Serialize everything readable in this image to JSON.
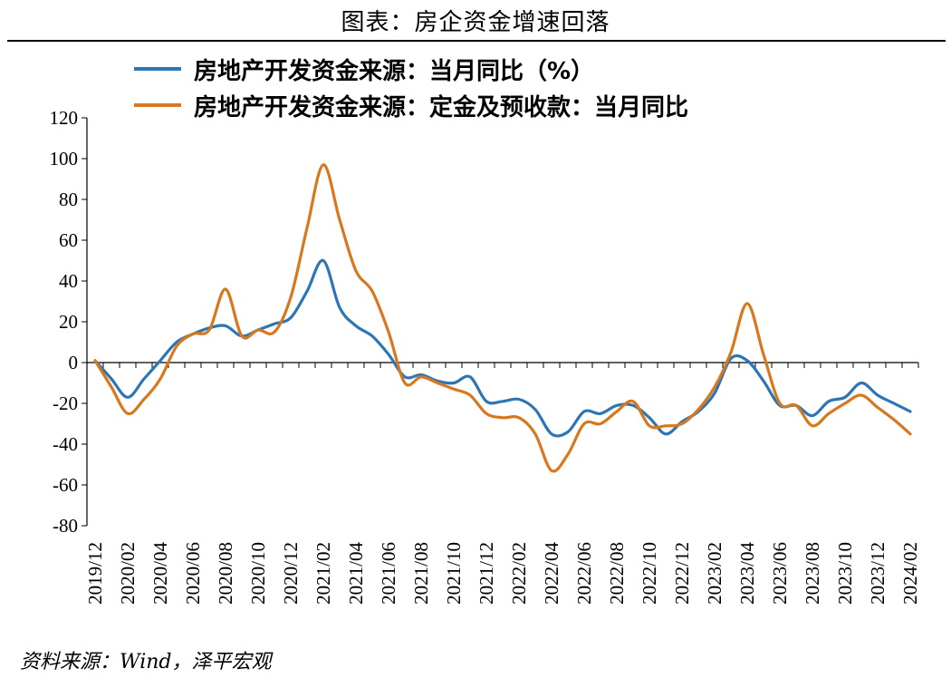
{
  "title": "图表：房企资金增速回落",
  "source": "资料来源：Wind，泽平宏观",
  "colors": {
    "series1": "#2E75B6",
    "series2": "#D8781E"
  },
  "chart_data": {
    "type": "line",
    "title": "图表：房企资金增速回落",
    "ylim": [
      -80,
      120
    ],
    "yticks": [
      120,
      100,
      80,
      60,
      40,
      20,
      0,
      -20,
      -40,
      -60,
      -80
    ],
    "grid": false,
    "legend": "top-left",
    "x": [
      "2019/12",
      "2020/01",
      "2020/02",
      "2020/03",
      "2020/04",
      "2020/05",
      "2020/06",
      "2020/07",
      "2020/08",
      "2020/09",
      "2020/10",
      "2020/11",
      "2020/12",
      "2021/01",
      "2021/02",
      "2021/03",
      "2021/04",
      "2021/05",
      "2021/06",
      "2021/07",
      "2021/08",
      "2021/09",
      "2021/10",
      "2021/11",
      "2021/12",
      "2022/01",
      "2022/02",
      "2022/03",
      "2022/04",
      "2022/05",
      "2022/06",
      "2022/07",
      "2022/08",
      "2022/09",
      "2022/10",
      "2022/11",
      "2022/12",
      "2023/01",
      "2023/02",
      "2023/03",
      "2023/04",
      "2023/05",
      "2023/06",
      "2023/07",
      "2023/08",
      "2023/09",
      "2023/10",
      "2023/11",
      "2023/12",
      "2024/01",
      "2024/02"
    ],
    "xtick_labels": [
      "2019/12",
      "2020/02",
      "2020/04",
      "2020/06",
      "2020/08",
      "2020/10",
      "2020/12",
      "2021/02",
      "2021/04",
      "2021/06",
      "2021/08",
      "2021/10",
      "2021/12",
      "2022/02",
      "2022/04",
      "2022/06",
      "2022/08",
      "2022/10",
      "2022/12",
      "2023/02",
      "2023/04",
      "2023/06",
      "2023/08",
      "2023/10",
      "2023/12",
      "2024/02"
    ],
    "series": [
      {
        "name": "房地产开发资金来源：当月同比（%）",
        "color": "#2E75B6",
        "values": [
          1,
          -8,
          -17,
          -8,
          1,
          10,
          14,
          17,
          18,
          13,
          16,
          19,
          22,
          35,
          50,
          27,
          18,
          13,
          4,
          -7,
          -6,
          -9,
          -10,
          -7,
          -19,
          -19,
          -18,
          -23,
          -35,
          -34,
          -24,
          -25,
          -21,
          -21,
          -27,
          -35,
          -29,
          -24,
          -15,
          2,
          1,
          -9,
          -21,
          -21,
          -26,
          -19,
          -17,
          -10,
          -16,
          -20,
          -24
        ]
      },
      {
        "name": "房地产开发资金来源：定金及预收款：当月同比",
        "color": "#D8781E",
        "values": [
          1,
          -12,
          -25,
          -18,
          -8,
          8,
          14,
          16,
          36,
          13,
          16,
          15,
          32,
          66,
          97,
          70,
          45,
          35,
          15,
          -10,
          -7,
          -10,
          -13,
          -16,
          -25,
          -27,
          -27,
          -35,
          -53,
          -45,
          -30,
          -30,
          -24,
          -19,
          -31,
          -31,
          -30,
          -23,
          -12,
          5,
          29,
          4,
          -20,
          -21,
          -31,
          -25,
          -20,
          -16,
          -22,
          -28,
          -35
        ]
      }
    ]
  }
}
